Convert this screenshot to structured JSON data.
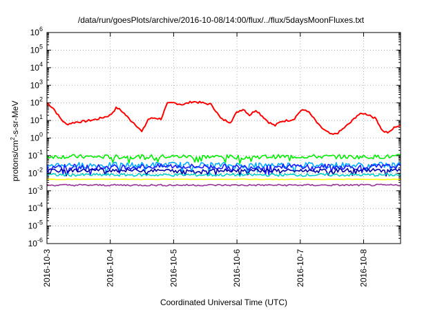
{
  "chart_data": {
    "type": "line",
    "title": "/data/run/goesPlots/archive/2016-10-08/14:00/flux/../flux/5daysMoonFluxes.txt",
    "xlabel": "Coordinated Universal Time (UTC)",
    "ylabel": {
      "pre": "protons/cm",
      "sup": "2",
      "post": "-s-sr-MeV"
    },
    "yscale": "log",
    "ylim_exponents": [
      -6,
      6
    ],
    "y_ticks": [
      {
        "base": "10",
        "exp": "6"
      },
      {
        "base": "10",
        "exp": "5"
      },
      {
        "base": "10",
        "exp": "4"
      },
      {
        "base": "10",
        "exp": "3"
      },
      {
        "base": "10",
        "exp": "2"
      },
      {
        "base": "10",
        "exp": "1"
      },
      {
        "base": "10",
        "exp": "0"
      },
      {
        "base": "10",
        "exp": "-1"
      },
      {
        "base": "10",
        "exp": "-2"
      },
      {
        "base": "10",
        "exp": "-3"
      },
      {
        "base": "10",
        "exp": "-4"
      },
      {
        "base": "10",
        "exp": "-5"
      },
      {
        "base": "10",
        "exp": "-6"
      }
    ],
    "xlim": [
      "2016-10-03",
      "2016-10-08 14:00"
    ],
    "x_ticks": [
      "2016-10-3",
      "2016-10-4",
      "2016-10-5",
      "2016-10-6",
      "2016-10-7",
      "2016-10-8"
    ],
    "grid": true,
    "series": [
      {
        "color": "#ff0000",
        "noise": 0.06,
        "x": [
          0,
          0.1,
          0.2,
          0.3,
          0.45,
          0.6,
          0.8,
          1.0,
          1.1,
          1.2,
          1.3,
          1.4,
          1.5,
          1.6,
          1.7,
          1.8,
          1.9,
          2.0,
          2.15,
          2.3,
          2.45,
          2.6,
          2.75,
          2.9,
          3.0,
          3.1,
          3.2,
          3.3,
          3.4,
          3.5,
          3.6,
          3.7,
          3.8,
          3.9,
          4.0,
          4.1,
          4.2,
          4.3,
          4.4,
          4.5,
          4.6,
          4.7,
          4.8,
          4.9,
          5.0,
          5.1,
          5.2,
          5.3,
          5.4,
          5.5,
          5.583
        ],
        "y": [
          100,
          50,
          15,
          6,
          8,
          9,
          12,
          20,
          55,
          30,
          12,
          6,
          2.2,
          12,
          14,
          12,
          90,
          100,
          80,
          120,
          100,
          80,
          12,
          8,
          30,
          45,
          20,
          40,
          18,
          8,
          5,
          9,
          10,
          12,
          35,
          40,
          15,
          5,
          2.5,
          1.5,
          2,
          4,
          8,
          20,
          25,
          20,
          12,
          2.5,
          2,
          4.5,
          5
        ]
      },
      {
        "color": "#00ee00",
        "noise": 0.12,
        "x": [
          0,
          1,
          2,
          3,
          4,
          5,
          5.583
        ],
        "y": [
          0.09,
          0.085,
          0.09,
          0.085,
          0.09,
          0.085,
          0.09
        ]
      },
      {
        "color": "#00aaff",
        "noise": 0.17,
        "x": [
          0,
          1,
          2,
          3,
          4,
          5,
          5.583
        ],
        "y": [
          0.03,
          0.028,
          0.03,
          0.028,
          0.03,
          0.028,
          0.03
        ]
      },
      {
        "color": "#1a1aff",
        "noise": 0.15,
        "x": [
          0,
          1,
          2,
          3,
          4,
          5,
          5.583
        ],
        "y": [
          0.025,
          0.022,
          0.025,
          0.022,
          0.025,
          0.022,
          0.025
        ]
      },
      {
        "color": "#0000aa",
        "noise": 0.1,
        "x": [
          0,
          1,
          2,
          3,
          4,
          5,
          5.583
        ],
        "y": [
          0.014,
          0.015,
          0.014,
          0.015,
          0.014,
          0.015,
          0.014
        ]
      },
      {
        "color": "#00cccc",
        "noise": 0.08,
        "x": [
          0,
          1,
          2,
          3,
          4,
          5,
          5.583
        ],
        "y": [
          0.008,
          0.008,
          0.008,
          0.008,
          0.008,
          0.008,
          0.008
        ]
      },
      {
        "color": "#ffff00",
        "noise": 0.02,
        "x": [
          0,
          1,
          2,
          3,
          4,
          5,
          5.583
        ],
        "y": [
          0.0045,
          0.0045,
          0.0045,
          0.0045,
          0.0045,
          0.0045,
          0.0045
        ]
      },
      {
        "color": "#993399",
        "noise": 0.05,
        "x": [
          0,
          1,
          2,
          3,
          4,
          5,
          5.583
        ],
        "y": [
          0.0021,
          0.0021,
          0.0021,
          0.0021,
          0.0021,
          0.0021,
          0.0021
        ]
      }
    ]
  }
}
